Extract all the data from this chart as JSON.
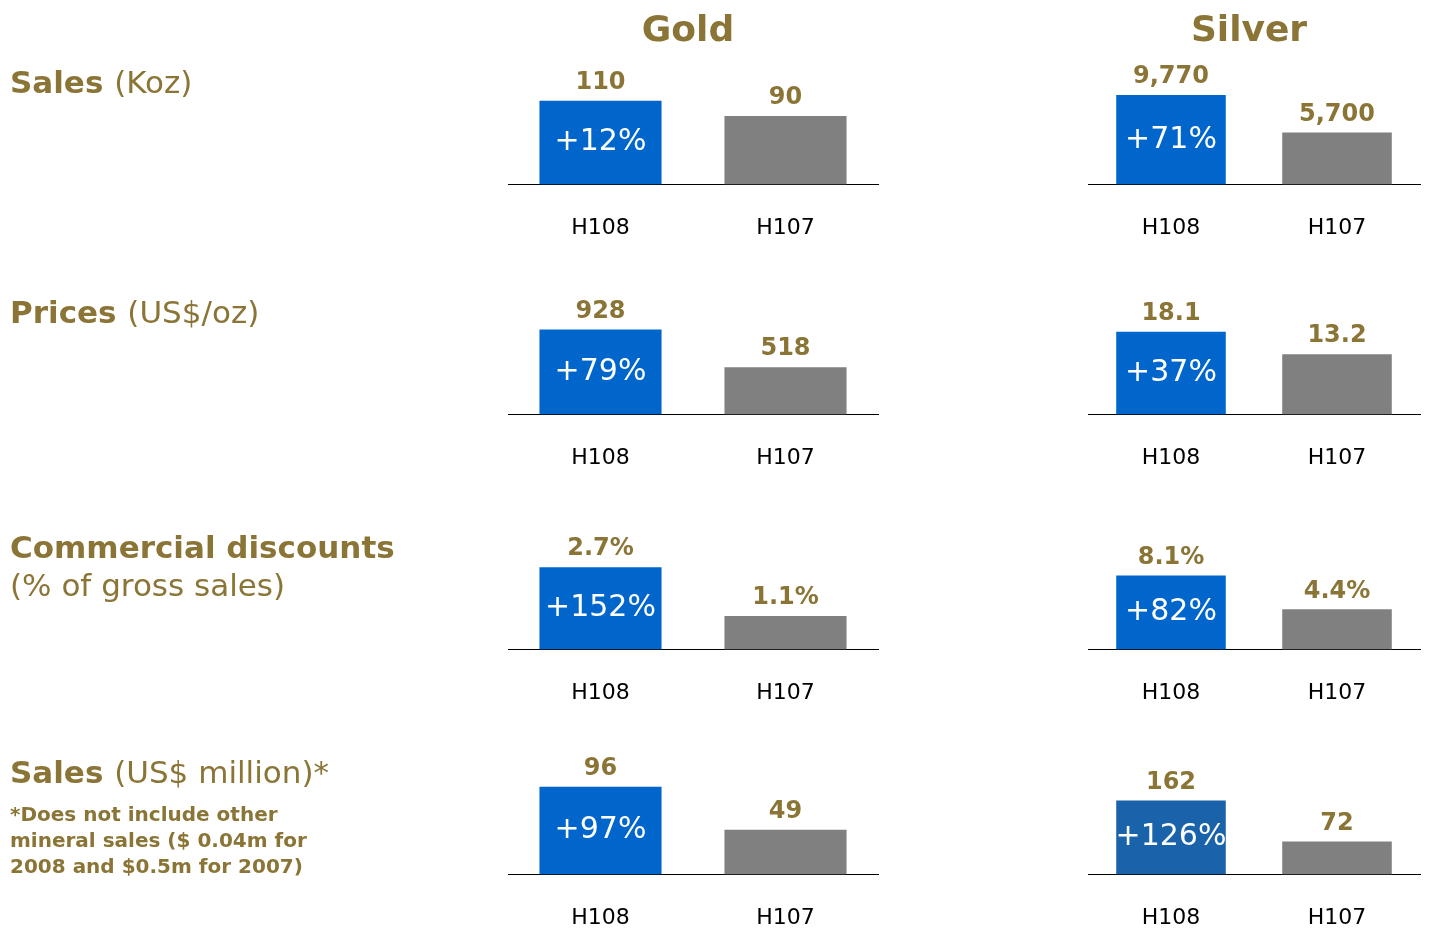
{
  "chart_data": [
    {
      "type": "bar",
      "title": "Gold",
      "ylabel": "Sales (Koz)",
      "categories": [
        "H108",
        "H107"
      ],
      "values": [
        110,
        90
      ],
      "colors": [
        "#0066cc",
        "#808080"
      ],
      "value_labels": [
        "110",
        "90"
      ],
      "annotations": [
        "+12%"
      ]
    },
    {
      "type": "bar",
      "title": "Silver",
      "categories": [
        "H108",
        "H107"
      ],
      "values": [
        9770,
        5700
      ],
      "colors": [
        "#0066cc",
        "#808080"
      ],
      "value_labels": [
        "9,770",
        "5,700"
      ],
      "annotations": [
        "+71%"
      ]
    },
    {
      "type": "bar",
      "ylabel": "Prices (US$/oz)",
      "categories": [
        "H108",
        "H107"
      ],
      "values": [
        928,
        518
      ],
      "colors": [
        "#0066cc",
        "#808080"
      ],
      "value_labels": [
        "928",
        "518"
      ],
      "annotations": [
        "+79%"
      ]
    },
    {
      "type": "bar",
      "categories": [
        "H108",
        "H107"
      ],
      "values": [
        18.1,
        13.2
      ],
      "colors": [
        "#0066cc",
        "#808080"
      ],
      "value_labels": [
        "18.1",
        "13.2"
      ],
      "annotations": [
        "+37%"
      ]
    },
    {
      "type": "bar",
      "ylabel": "Commercial discounts (% of gross sales)",
      "categories": [
        "H108",
        "H107"
      ],
      "values": [
        2.7,
        1.1
      ],
      "colors": [
        "#0066cc",
        "#808080"
      ],
      "value_labels": [
        "2.7%",
        "1.1%"
      ],
      "annotations": [
        "+152%"
      ]
    },
    {
      "type": "bar",
      "categories": [
        "H108",
        "H107"
      ],
      "values": [
        8.1,
        4.4
      ],
      "colors": [
        "#0066cc",
        "#808080"
      ],
      "value_labels": [
        "8.1%",
        "4.4%"
      ],
      "annotations": [
        "+82%"
      ]
    },
    {
      "type": "bar",
      "ylabel": "Sales (US$ million)*",
      "categories": [
        "H108",
        "H107"
      ],
      "values": [
        96,
        49
      ],
      "colors": [
        "#0066cc",
        "#808080"
      ],
      "value_labels": [
        "96",
        "49"
      ],
      "annotations": [
        "+97%",
        "*Does not include other mineral sales ($ 0.04m for 2008 and $0.5m for 2007)"
      ]
    },
    {
      "type": "bar",
      "categories": [
        "H108",
        "H107"
      ],
      "values": [
        162,
        72
      ],
      "colors": [
        "#1a63ab",
        "#808080"
      ],
      "value_labels": [
        "162",
        "72"
      ],
      "annotations": [
        "+126%"
      ]
    }
  ]
}
